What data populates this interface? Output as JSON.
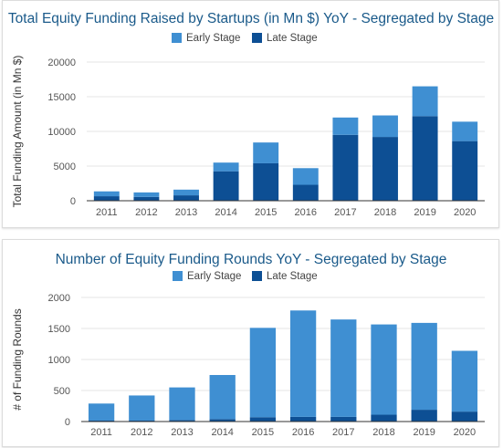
{
  "colors": {
    "early": "#3f8fd2",
    "late": "#0d4f94",
    "title": "#1a5a8a"
  },
  "chart_data": [
    {
      "type": "bar",
      "stacked": true,
      "title": "Total Equity Funding Raised by Startups (in Mn $) YoY - Segregated by Stage",
      "xlabel": "",
      "ylabel": "Total Funding Amount (in Mn $)",
      "categories": [
        "2011",
        "2012",
        "2013",
        "2014",
        "2015",
        "2016",
        "2017",
        "2018",
        "2019",
        "2020"
      ],
      "series": [
        {
          "name": "Late Stage",
          "values": [
            650,
            550,
            780,
            4250,
            5400,
            2300,
            9500,
            9200,
            12200,
            8600
          ]
        },
        {
          "name": "Early Stage",
          "values": [
            700,
            650,
            820,
            1250,
            3000,
            2400,
            2500,
            3100,
            4300,
            2800
          ]
        }
      ],
      "legend_order": [
        "Early Stage",
        "Late Stage"
      ],
      "ylim": [
        0,
        20000
      ],
      "yticks": [
        0,
        5000,
        10000,
        15000,
        20000
      ],
      "grid": true,
      "legend_position": "top"
    },
    {
      "type": "bar",
      "stacked": true,
      "title": "Number of Equity Funding Rounds YoY - Segregated by Stage",
      "xlabel": "",
      "ylabel": "# of Funding Rounds",
      "categories": [
        "2011",
        "2012",
        "2013",
        "2014",
        "2015",
        "2016",
        "2017",
        "2018",
        "2019",
        "2020"
      ],
      "series": [
        {
          "name": "Late Stage",
          "values": [
            15,
            15,
            25,
            40,
            70,
            75,
            75,
            110,
            190,
            160
          ]
        },
        {
          "name": "Early Stage",
          "values": [
            275,
            405,
            525,
            710,
            1440,
            1715,
            1570,
            1455,
            1400,
            980
          ]
        }
      ],
      "legend_order": [
        "Early Stage",
        "Late Stage"
      ],
      "ylim": [
        0,
        2000
      ],
      "yticks": [
        0,
        500,
        1000,
        1500,
        2000
      ],
      "grid": true,
      "legend_position": "top"
    }
  ]
}
